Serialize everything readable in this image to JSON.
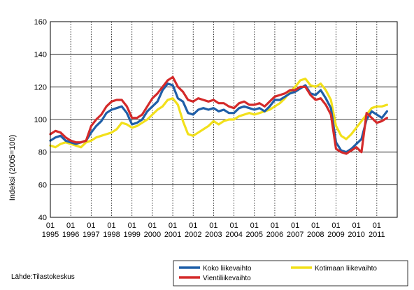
{
  "chart_data": {
    "type": "line",
    "title": "",
    "ylabel": "Indeksi (2005=100)",
    "xlabel": "",
    "ylim": [
      40,
      160
    ],
    "yticks": [
      40,
      60,
      80,
      100,
      120,
      140,
      160
    ],
    "x_start_year": 1995,
    "x_end_year": 2011,
    "x_month_label": "01",
    "x_years": [
      "1995",
      "1996",
      "1997",
      "1998",
      "1999",
      "2000",
      "2001",
      "2002",
      "2003",
      "2004",
      "2005",
      "2006",
      "2007",
      "2008",
      "2009",
      "2010",
      "2011"
    ],
    "grid": "vertical dotted, horizontal solid",
    "legend_position": "bottom-right",
    "source": "Lähde:Tilastokeskus",
    "series": [
      {
        "name": "Koko liikevaihto",
        "color": "#1f5fa8",
        "points": [
          [
            "1995-01",
            87
          ],
          [
            "1995-04",
            89
          ],
          [
            "1995-07",
            90
          ],
          [
            "1995-10",
            87
          ],
          [
            "1996-01",
            86
          ],
          [
            "1996-04",
            85
          ],
          [
            "1996-07",
            86
          ],
          [
            "1996-10",
            87
          ],
          [
            "1997-01",
            92
          ],
          [
            "1997-04",
            96
          ],
          [
            "1997-07",
            99
          ],
          [
            "1997-10",
            104
          ],
          [
            "1998-01",
            106
          ],
          [
            "1998-04",
            107
          ],
          [
            "1998-07",
            108
          ],
          [
            "1998-10",
            104
          ],
          [
            "1999-01",
            97
          ],
          [
            "1999-04",
            98
          ],
          [
            "1999-07",
            100
          ],
          [
            "1999-10",
            105
          ],
          [
            "2000-01",
            108
          ],
          [
            "2000-04",
            111
          ],
          [
            "2000-07",
            118
          ],
          [
            "2000-10",
            122
          ],
          [
            "2001-01",
            121
          ],
          [
            "2001-04",
            113
          ],
          [
            "2001-07",
            111
          ],
          [
            "2001-10",
            104
          ],
          [
            "2002-01",
            103
          ],
          [
            "2002-04",
            106
          ],
          [
            "2002-07",
            107
          ],
          [
            "2002-10",
            106
          ],
          [
            "2003-01",
            107
          ],
          [
            "2003-04",
            105
          ],
          [
            "2003-07",
            106
          ],
          [
            "2003-10",
            104
          ],
          [
            "2004-01",
            104
          ],
          [
            "2004-04",
            107
          ],
          [
            "2004-07",
            108
          ],
          [
            "2004-10",
            107
          ],
          [
            "2005-01",
            106
          ],
          [
            "2005-04",
            107
          ],
          [
            "2005-07",
            105
          ],
          [
            "2005-10",
            108
          ],
          [
            "2006-01",
            112
          ],
          [
            "2006-04",
            112
          ],
          [
            "2006-07",
            114
          ],
          [
            "2006-10",
            116
          ],
          [
            "2007-01",
            117
          ],
          [
            "2007-04",
            119
          ],
          [
            "2007-07",
            121
          ],
          [
            "2007-10",
            116
          ],
          [
            "2008-01",
            115
          ],
          [
            "2008-04",
            118
          ],
          [
            "2008-07",
            113
          ],
          [
            "2008-10",
            107
          ],
          [
            "2009-01",
            86
          ],
          [
            "2009-04",
            81
          ],
          [
            "2009-07",
            80
          ],
          [
            "2009-10",
            82
          ],
          [
            "2010-01",
            85
          ],
          [
            "2010-04",
            88
          ],
          [
            "2010-07",
            100
          ],
          [
            "2010-10",
            105
          ],
          [
            "2011-01",
            103
          ],
          [
            "2011-04",
            101
          ],
          [
            "2011-07",
            105
          ]
        ]
      },
      {
        "name": "Kotimaan liikevaihto",
        "color": "#f2e01b",
        "points": [
          [
            "1995-01",
            84
          ],
          [
            "1995-04",
            83
          ],
          [
            "1995-07",
            85
          ],
          [
            "1995-10",
            86
          ],
          [
            "1996-01",
            85
          ],
          [
            "1996-04",
            84
          ],
          [
            "1996-07",
            83
          ],
          [
            "1996-10",
            86
          ],
          [
            "1997-01",
            87
          ],
          [
            "1997-04",
            89
          ],
          [
            "1997-07",
            90
          ],
          [
            "1997-10",
            91
          ],
          [
            "1998-01",
            92
          ],
          [
            "1998-04",
            94
          ],
          [
            "1998-07",
            98
          ],
          [
            "1998-10",
            97
          ],
          [
            "1999-01",
            95
          ],
          [
            "1999-04",
            96
          ],
          [
            "1999-07",
            98
          ],
          [
            "1999-10",
            100
          ],
          [
            "2000-01",
            103
          ],
          [
            "2000-04",
            106
          ],
          [
            "2000-07",
            108
          ],
          [
            "2000-10",
            112
          ],
          [
            "2001-01",
            113
          ],
          [
            "2001-04",
            109
          ],
          [
            "2001-07",
            99
          ],
          [
            "2001-10",
            91
          ],
          [
            "2002-01",
            90
          ],
          [
            "2002-04",
            92
          ],
          [
            "2002-07",
            94
          ],
          [
            "2002-10",
            96
          ],
          [
            "2003-01",
            99
          ],
          [
            "2003-04",
            97
          ],
          [
            "2003-07",
            99
          ],
          [
            "2003-10",
            100
          ],
          [
            "2004-01",
            100
          ],
          [
            "2004-04",
            102
          ],
          [
            "2004-07",
            103
          ],
          [
            "2004-10",
            104
          ],
          [
            "2005-01",
            103
          ],
          [
            "2005-04",
            104
          ],
          [
            "2005-07",
            105
          ],
          [
            "2005-10",
            106
          ],
          [
            "2006-01",
            108
          ],
          [
            "2006-04",
            110
          ],
          [
            "2006-07",
            113
          ],
          [
            "2006-10",
            117
          ],
          [
            "2007-01",
            120
          ],
          [
            "2007-04",
            124
          ],
          [
            "2007-07",
            125
          ],
          [
            "2007-10",
            121
          ],
          [
            "2008-01",
            120
          ],
          [
            "2008-04",
            122
          ],
          [
            "2008-07",
            118
          ],
          [
            "2008-10",
            112
          ],
          [
            "2009-01",
            96
          ],
          [
            "2009-04",
            90
          ],
          [
            "2009-07",
            88
          ],
          [
            "2009-10",
            91
          ],
          [
            "2010-01",
            95
          ],
          [
            "2010-04",
            99
          ],
          [
            "2010-07",
            103
          ],
          [
            "2010-10",
            107
          ],
          [
            "2011-01",
            108
          ],
          [
            "2011-04",
            108
          ],
          [
            "2011-07",
            109
          ]
        ]
      },
      {
        "name": "Vientiliikevaihto",
        "color": "#d42a2a",
        "points": [
          [
            "1995-01",
            91
          ],
          [
            "1995-04",
            93
          ],
          [
            "1995-07",
            92
          ],
          [
            "1995-10",
            89
          ],
          [
            "1996-01",
            87
          ],
          [
            "1996-04",
            86
          ],
          [
            "1996-07",
            86
          ],
          [
            "1996-10",
            87
          ],
          [
            "1997-01",
            96
          ],
          [
            "1997-04",
            100
          ],
          [
            "1997-07",
            103
          ],
          [
            "1997-10",
            108
          ],
          [
            "1998-01",
            111
          ],
          [
            "1998-04",
            112
          ],
          [
            "1998-07",
            112
          ],
          [
            "1998-10",
            108
          ],
          [
            "1999-01",
            101
          ],
          [
            "1999-04",
            101
          ],
          [
            "1999-07",
            103
          ],
          [
            "1999-10",
            108
          ],
          [
            "2000-01",
            113
          ],
          [
            "2000-04",
            116
          ],
          [
            "2000-07",
            120
          ],
          [
            "2000-10",
            124
          ],
          [
            "2001-01",
            126
          ],
          [
            "2001-04",
            120
          ],
          [
            "2001-07",
            117
          ],
          [
            "2001-10",
            112
          ],
          [
            "2002-01",
            111
          ],
          [
            "2002-04",
            113
          ],
          [
            "2002-07",
            112
          ],
          [
            "2002-10",
            111
          ],
          [
            "2003-01",
            112
          ],
          [
            "2003-04",
            110
          ],
          [
            "2003-07",
            110
          ],
          [
            "2003-10",
            108
          ],
          [
            "2004-01",
            107
          ],
          [
            "2004-04",
            110
          ],
          [
            "2004-07",
            111
          ],
          [
            "2004-10",
            109
          ],
          [
            "2005-01",
            109
          ],
          [
            "2005-04",
            110
          ],
          [
            "2005-07",
            108
          ],
          [
            "2005-10",
            111
          ],
          [
            "2006-01",
            114
          ],
          [
            "2006-04",
            115
          ],
          [
            "2006-07",
            116
          ],
          [
            "2006-10",
            118
          ],
          [
            "2007-01",
            118
          ],
          [
            "2007-04",
            120
          ],
          [
            "2007-07",
            120
          ],
          [
            "2007-10",
            115
          ],
          [
            "2008-01",
            112
          ],
          [
            "2008-04",
            113
          ],
          [
            "2008-07",
            109
          ],
          [
            "2008-10",
            103
          ],
          [
            "2009-01",
            82
          ],
          [
            "2009-04",
            80
          ],
          [
            "2009-07",
            79
          ],
          [
            "2009-10",
            81
          ],
          [
            "2010-01",
            83
          ],
          [
            "2010-04",
            80
          ],
          [
            "2010-07",
            104
          ],
          [
            "2010-10",
            101
          ],
          [
            "2011-01",
            98
          ],
          [
            "2011-04",
            99
          ],
          [
            "2011-07",
            101
          ]
        ]
      }
    ]
  }
}
